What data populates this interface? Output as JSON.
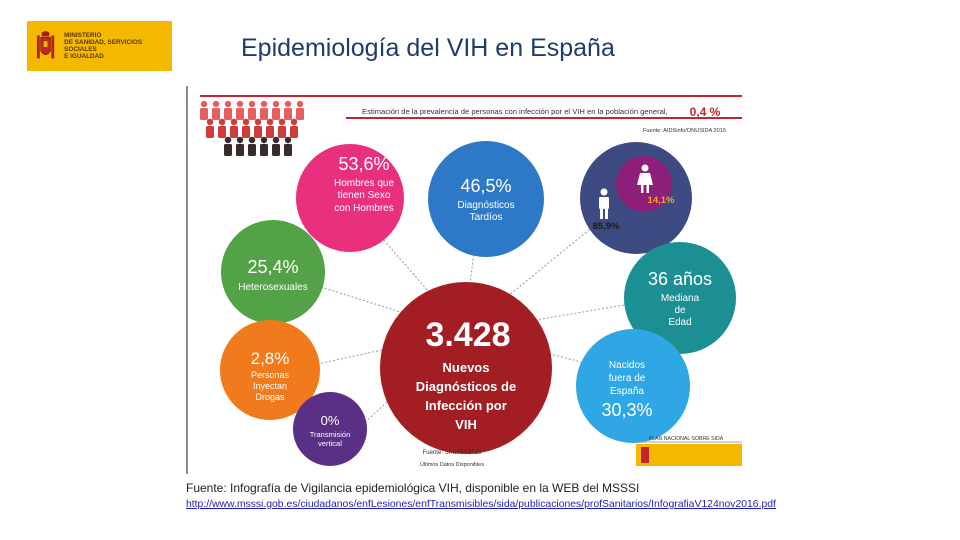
{
  "logo": {
    "lines": [
      "MINISTERIO",
      "DE SANIDAD, SERVICIOS SOCIALES",
      "E IGUALDAD"
    ]
  },
  "title": "Epidemiología  del VIH en España",
  "banner": {
    "text": "Estimación de la prevalencia de personas con infección por el VIH en la población general,",
    "value": "0,4 %",
    "source": "Fuente: AIDSinfo/ONUSIDA 2015"
  },
  "bubbles": {
    "hsh": {
      "value": "53,6%",
      "label": [
        "Hombres que",
        "tienen Sexo",
        "con Hombres"
      ],
      "color": "#e8307e"
    },
    "tardios": {
      "value": "46,5%",
      "label": [
        "Diagnósticos",
        "Tardíos"
      ],
      "color": "#2e79c7"
    },
    "sexo": {
      "male": "85,9%",
      "female": "14,1%",
      "color": "#3d4b82",
      "female_color": "#8d1f7a"
    },
    "hetero": {
      "value": "25,4%",
      "label": [
        "Heterosexuales"
      ],
      "color": "#53a247"
    },
    "edad": {
      "value": "36 años",
      "label": [
        "Mediana",
        "de",
        "Edad"
      ],
      "color": "#1b8f94"
    },
    "centro": {
      "value": "3.428",
      "label": [
        "Nuevos",
        "Diagnósticos de",
        "Infección por",
        "VIH"
      ],
      "color": "#a31e23"
    },
    "udi": {
      "value": "2,8%",
      "label": [
        "Personas",
        "Inyectan",
        "Drogas"
      ],
      "color": "#f07a1c"
    },
    "extranjeros": {
      "value": "30,3%",
      "label": [
        "Nacidos",
        "fuera de",
        "España"
      ],
      "color": "#2fa7e4"
    },
    "vertical": {
      "value": "0%",
      "label": [
        "Transmisión",
        "vertical"
      ],
      "color": "#5a2f86"
    }
  },
  "footer": {
    "source": "Fuente: SINIVIH 2015",
    "note": "Últimos Datos Disponibles",
    "plan": "PLAN NACIONAL SOBRE SIDA"
  },
  "caption": {
    "fuente": "Fuente: Infografía de Vigilancia epidemiológica VIH, disponible en la WEB del MSSSI",
    "url": "http://www.msssi.gob.es/ciudadanos/enfLesiones/enfTransmisibles/sida/publicaciones/profSanitarios/InfografiaV124nov2016.pdf"
  },
  "colors": {
    "title": "#1f3a6e",
    "logo_bg": "#f5b800",
    "banner_red": "#c0272d",
    "people": "#d23a3a"
  }
}
